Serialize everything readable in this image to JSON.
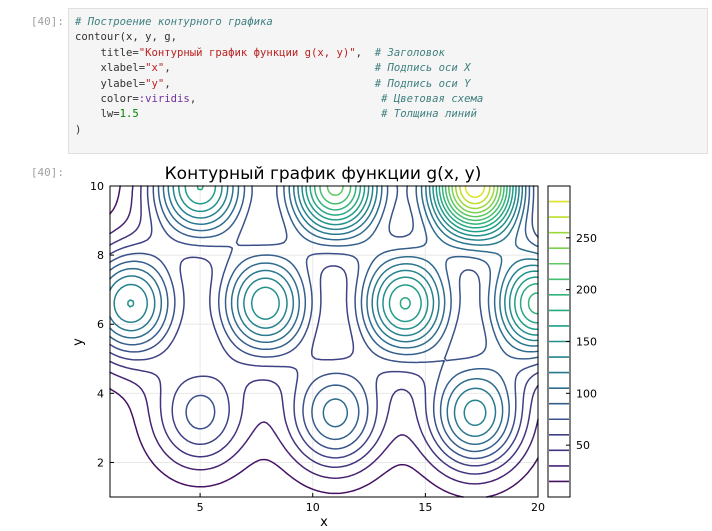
{
  "cells": {
    "input_prompt": "[40]:",
    "output_prompt": "[40]:",
    "code": {
      "comment_line": "# Построение контурного графика",
      "call": "contour(x, y, g,",
      "title_key": "    title=",
      "title_str": "\"Контурный график функции g(x, y)\"",
      "title_sep": ",  ",
      "title_comment": "# Заголовок",
      "xlabel_key": "    xlabel=",
      "xlabel_str": "\"x\"",
      "xlabel_sep": ",                                ",
      "xlabel_comment": "# Подпись оси X",
      "ylabel_key": "    ylabel=",
      "ylabel_str": "\"y\"",
      "ylabel_sep": ",                                ",
      "ylabel_comment": "# Подпись оси Y",
      "color_key": "    color=",
      "color_sym": ":viridis",
      "color_sep": ",                             ",
      "color_comment": "# Цветовая схема",
      "lw_key": "    lw=",
      "lw_num": "1.5",
      "lw_sep": "                                      ",
      "lw_comment": "# Толщина линий",
      "close": ")"
    }
  },
  "chart_data": {
    "type": "contour",
    "title": "Контурный график функции g(x, y)",
    "xlabel": "x",
    "ylabel": "y",
    "xlim": [
      1,
      20
    ],
    "ylim": [
      1,
      10
    ],
    "xticks": [
      5,
      10,
      15,
      20
    ],
    "yticks": [
      2,
      4,
      6,
      8,
      10
    ],
    "colorbar": {
      "range": [
        0,
        300
      ],
      "ticks": [
        50,
        100,
        150,
        200,
        250
      ],
      "colormap": "viridis"
    },
    "levels": [
      15,
      30,
      45,
      60,
      75,
      90,
      105,
      120,
      135,
      150,
      165,
      180,
      195,
      210,
      225,
      240,
      255,
      270,
      285
    ],
    "peaks": [
      {
        "x": 1.9,
        "y": 6.6,
        "value": 150
      },
      {
        "x": 7.9,
        "y": 6.6,
        "value": 160
      },
      {
        "x": 14.1,
        "y": 6.6,
        "value": 180
      },
      {
        "x": 20.0,
        "y": 6.6,
        "value": 200
      },
      {
        "x": 5.0,
        "y": 3.4,
        "value": 80
      },
      {
        "x": 11.0,
        "y": 3.4,
        "value": 110
      },
      {
        "x": 17.2,
        "y": 3.4,
        "value": 140
      },
      {
        "x": 5.0,
        "y": 10.0,
        "value": 180
      },
      {
        "x": 11.0,
        "y": 10.0,
        "value": 230
      },
      {
        "x": 17.2,
        "y": 10.0,
        "value": 295
      }
    ],
    "grid": true,
    "legend": "none"
  }
}
